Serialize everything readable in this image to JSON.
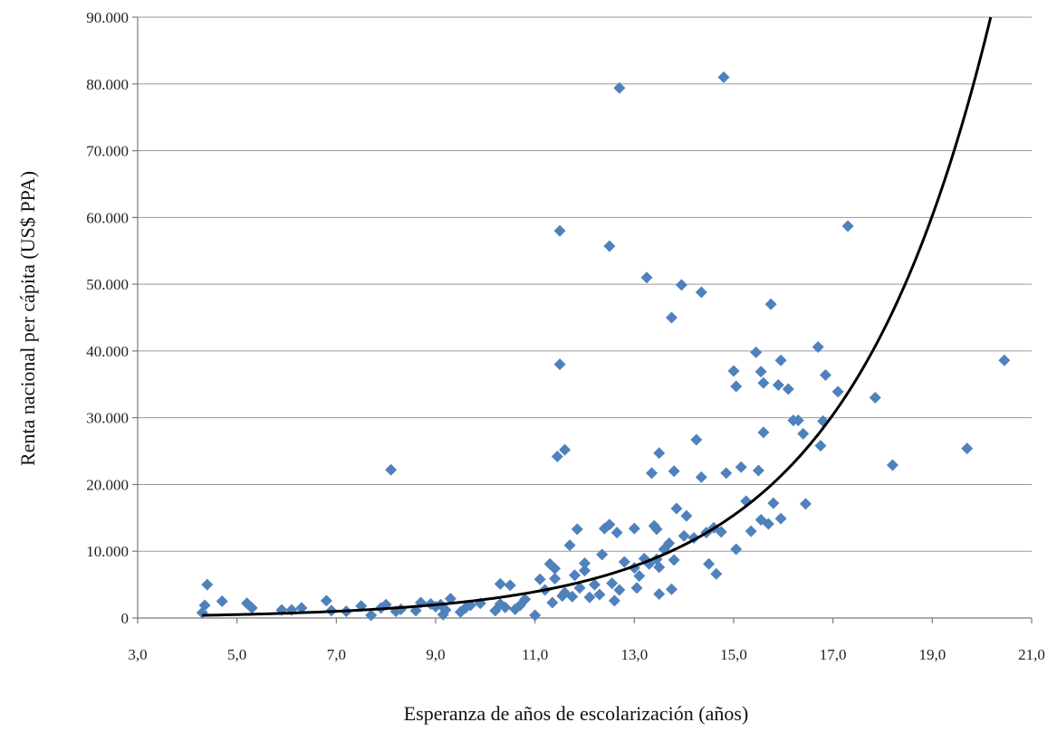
{
  "chart_data": {
    "type": "scatter",
    "title": "",
    "xlabel": "Esperanza de años de escolarización (años)",
    "ylabel": "Renta nacional per cápita (US$ PPA)",
    "xlim": [
      3.0,
      21.0
    ],
    "ylim": [
      0,
      90000
    ],
    "x_ticks": [
      "3,0",
      "5,0",
      "7,0",
      "9,0",
      "11,0",
      "13,0",
      "15,0",
      "17,0",
      "19,0",
      "21,0"
    ],
    "x_tick_values": [
      3,
      5,
      7,
      9,
      11,
      13,
      15,
      17,
      19,
      21
    ],
    "y_ticks": [
      "0",
      "10.000",
      "20.000",
      "30.000",
      "40.000",
      "50.000",
      "60.000",
      "70.000",
      "80.000",
      "90.000"
    ],
    "y_tick_values": [
      0,
      10000,
      20000,
      30000,
      40000,
      50000,
      60000,
      70000,
      80000,
      90000
    ],
    "grid": "horizontal",
    "legend": "none",
    "marker": "diamond",
    "marker_color": "#4F81BD",
    "trend_color": "#000000",
    "series": [
      {
        "points": [
          [
            4.3,
            800
          ],
          [
            4.35,
            1900
          ],
          [
            4.4,
            5000
          ],
          [
            4.7,
            2500
          ],
          [
            5.2,
            2200
          ],
          [
            5.3,
            1500
          ],
          [
            5.9,
            1200
          ],
          [
            6.1,
            1200
          ],
          [
            6.3,
            1500
          ],
          [
            6.8,
            2600
          ],
          [
            6.9,
            1100
          ],
          [
            7.2,
            1000
          ],
          [
            7.5,
            1800
          ],
          [
            7.7,
            400
          ],
          [
            7.9,
            1500
          ],
          [
            8.0,
            2000
          ],
          [
            8.1,
            22200
          ],
          [
            8.2,
            1000
          ],
          [
            8.3,
            1300
          ],
          [
            8.6,
            1100
          ],
          [
            8.7,
            2300
          ],
          [
            8.9,
            2100
          ],
          [
            9.0,
            1700
          ],
          [
            9.1,
            2000
          ],
          [
            9.15,
            500
          ],
          [
            9.2,
            1200
          ],
          [
            9.3,
            2900
          ],
          [
            9.5,
            900
          ],
          [
            9.6,
            1500
          ],
          [
            9.7,
            1900
          ],
          [
            9.9,
            2200
          ],
          [
            10.2,
            1100
          ],
          [
            10.3,
            5100
          ],
          [
            10.3,
            2100
          ],
          [
            10.4,
            1600
          ],
          [
            10.5,
            4900
          ],
          [
            10.6,
            1300
          ],
          [
            10.7,
            1900
          ],
          [
            10.8,
            2800
          ],
          [
            11.0,
            400
          ],
          [
            11.1,
            5800
          ],
          [
            11.2,
            4200
          ],
          [
            11.3,
            8100
          ],
          [
            11.35,
            2300
          ],
          [
            11.4,
            7400
          ],
          [
            11.4,
            5900
          ],
          [
            11.45,
            24200
          ],
          [
            11.5,
            38000
          ],
          [
            11.5,
            58000
          ],
          [
            11.55,
            3300
          ],
          [
            11.6,
            3800
          ],
          [
            11.6,
            25200
          ],
          [
            11.7,
            10900
          ],
          [
            11.75,
            3200
          ],
          [
            11.8,
            6400
          ],
          [
            11.85,
            13300
          ],
          [
            11.9,
            4500
          ],
          [
            12.0,
            8200
          ],
          [
            12.0,
            7100
          ],
          [
            12.1,
            3100
          ],
          [
            12.2,
            5000
          ],
          [
            12.3,
            3500
          ],
          [
            12.35,
            9500
          ],
          [
            12.4,
            13400
          ],
          [
            12.5,
            14000
          ],
          [
            12.5,
            55700
          ],
          [
            12.55,
            5200
          ],
          [
            12.6,
            2600
          ],
          [
            12.65,
            12800
          ],
          [
            12.7,
            4200
          ],
          [
            12.7,
            79400
          ],
          [
            12.8,
            8400
          ],
          [
            13.0,
            13400
          ],
          [
            13.0,
            7500
          ],
          [
            13.05,
            4500
          ],
          [
            13.1,
            6300
          ],
          [
            13.2,
            8900
          ],
          [
            13.25,
            51000
          ],
          [
            13.3,
            8100
          ],
          [
            13.35,
            21700
          ],
          [
            13.4,
            13800
          ],
          [
            13.45,
            8800
          ],
          [
            13.45,
            13300
          ],
          [
            13.5,
            24700
          ],
          [
            13.5,
            3600
          ],
          [
            13.5,
            7600
          ],
          [
            13.6,
            10300
          ],
          [
            13.7,
            11200
          ],
          [
            13.75,
            4300
          ],
          [
            13.75,
            45000
          ],
          [
            13.8,
            22000
          ],
          [
            13.8,
            8700
          ],
          [
            13.85,
            16400
          ],
          [
            13.95,
            49900
          ],
          [
            14.0,
            12300
          ],
          [
            14.05,
            15300
          ],
          [
            14.2,
            12000
          ],
          [
            14.25,
            26700
          ],
          [
            14.35,
            21100
          ],
          [
            14.35,
            48800
          ],
          [
            14.45,
            12800
          ],
          [
            14.5,
            8100
          ],
          [
            14.6,
            13500
          ],
          [
            14.65,
            6600
          ],
          [
            14.75,
            12900
          ],
          [
            14.8,
            81000
          ],
          [
            14.85,
            21700
          ],
          [
            15.0,
            37000
          ],
          [
            15.05,
            34700
          ],
          [
            15.05,
            10300
          ],
          [
            15.15,
            22600
          ],
          [
            15.25,
            17500
          ],
          [
            15.35,
            13000
          ],
          [
            15.45,
            39800
          ],
          [
            15.5,
            22100
          ],
          [
            15.55,
            14700
          ],
          [
            15.55,
            36900
          ],
          [
            15.6,
            27800
          ],
          [
            15.6,
            35200
          ],
          [
            15.7,
            14100
          ],
          [
            15.75,
            47000
          ],
          [
            15.8,
            17200
          ],
          [
            15.9,
            34900
          ],
          [
            15.95,
            38600
          ],
          [
            15.95,
            14900
          ],
          [
            16.1,
            34300
          ],
          [
            16.2,
            29600
          ],
          [
            16.3,
            29600
          ],
          [
            16.4,
            27600
          ],
          [
            16.45,
            17100
          ],
          [
            16.7,
            40600
          ],
          [
            16.75,
            25800
          ],
          [
            16.8,
            29500
          ],
          [
            16.85,
            36400
          ],
          [
            17.1,
            33900
          ],
          [
            17.3,
            58700
          ],
          [
            17.85,
            33000
          ],
          [
            18.2,
            22900
          ],
          [
            19.7,
            25400
          ],
          [
            20.45,
            38600
          ]
        ]
      }
    ],
    "trend": {
      "type": "exponential",
      "a": 92,
      "b": 0.3413,
      "x_range": [
        4.3,
        20.25
      ]
    }
  }
}
